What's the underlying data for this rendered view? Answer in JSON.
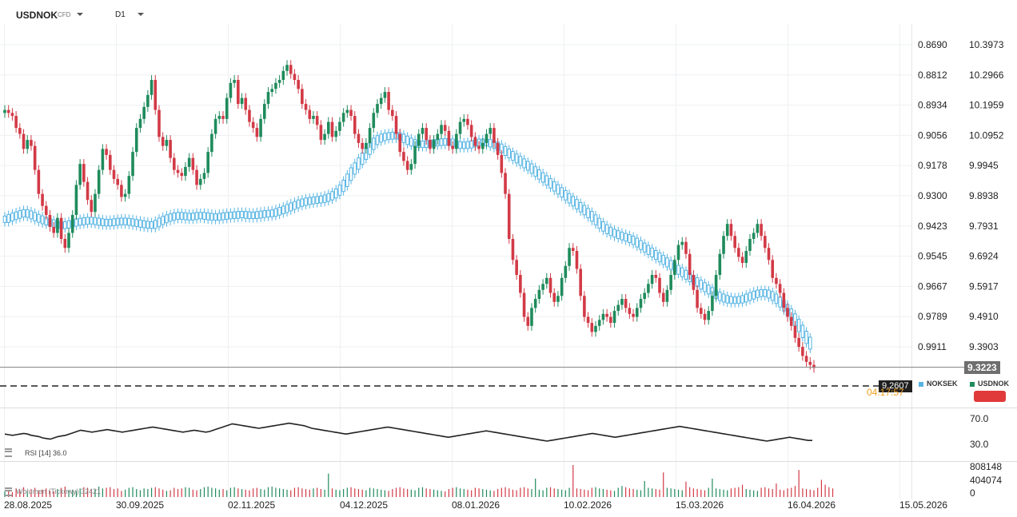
{
  "header": {
    "symbol": "USDNOK",
    "symbol_tag": "CFD",
    "timeframe": "D1"
  },
  "colors": {
    "up": "#1f8b5c",
    "down": "#d23a46",
    "secondary": "#56b4e3",
    "current_price_tag": "#6e6e6e",
    "dashed_tag": "#1f1f1f",
    "countdown": "#f0a020"
  },
  "right_axis_inner": [
    "0.8690",
    "0.8812",
    "0.8934",
    "0.9056",
    "0.9178",
    "0.9300",
    "0.9423",
    "0.9545",
    "0.9667",
    "0.9789",
    "0.9911"
  ],
  "right_axis_outer": [
    "10.3973",
    "10.2966",
    "10.1959",
    "10.0952",
    "9.9945",
    "9.8938",
    "9.7931",
    "9.6924",
    "9.5917",
    "9.4910",
    "9.3903"
  ],
  "current_price": "9.3223",
  "dashed_price": "9.2607",
  "countdown": "04:17:57",
  "legend": {
    "secondary": "NOKSEK",
    "primary": "USDNOK"
  },
  "rsi": {
    "label": "RSI [14] 36.0",
    "levels": [
      "70.0",
      "30.0"
    ]
  },
  "volume": {
    "label": "Wolumen (Tickowy) 32421",
    "levels": [
      "808148",
      "404074",
      "0"
    ]
  },
  "date_axis": [
    "28.08.2025",
    "30.09.2025",
    "02.11.2025",
    "04.12.2025",
    "08.01.2026",
    "10.02.2026",
    "15.03.2026",
    "16.04.2026",
    "15.05.2026"
  ],
  "chart_data": {
    "type": "candlestick",
    "primary_series": {
      "name": "USDNOK",
      "axis": "outer",
      "close": [
        10.18,
        10.17,
        10.16,
        10.12,
        10.1,
        10.05,
        10.08,
        10.06,
        9.98,
        9.9,
        9.86,
        9.83,
        9.79,
        9.77,
        9.82,
        9.75,
        9.72,
        9.77,
        9.83,
        9.93,
        10.0,
        9.94,
        9.88,
        9.84,
        9.9,
        9.98,
        10.05,
        10.03,
        9.98,
        9.95,
        9.93,
        9.89,
        9.9,
        9.96,
        10.04,
        10.12,
        10.15,
        10.19,
        10.23,
        10.28,
        10.18,
        10.09,
        10.06,
        10.08,
        10.02,
        9.98,
        9.97,
        9.96,
        9.99,
        10.02,
        9.98,
        9.93,
        9.95,
        9.97,
        10.04,
        10.1,
        10.15,
        10.16,
        10.15,
        10.22,
        10.27,
        10.28,
        10.2,
        10.22,
        10.18,
        10.14,
        10.12,
        10.09,
        10.15,
        10.2,
        10.24,
        10.25,
        10.27,
        10.28,
        10.31,
        10.33,
        10.3,
        10.28,
        10.25,
        10.2,
        10.18,
        10.15,
        10.16,
        10.13,
        10.08,
        10.1,
        10.14,
        10.09,
        10.11,
        10.14,
        10.17,
        10.18,
        10.16,
        10.1,
        10.07,
        10.05,
        10.07,
        10.12,
        10.17,
        10.2,
        10.22,
        10.24,
        10.18,
        10.16,
        10.1,
        10.04,
        10.01,
        9.98,
        10.0,
        10.06,
        10.1,
        10.12,
        10.08,
        10.05,
        10.08,
        10.1,
        10.13,
        10.11,
        10.06,
        10.05,
        10.1,
        10.14,
        10.15,
        10.13,
        10.09,
        10.06,
        10.05,
        10.07,
        10.1,
        10.12,
        10.07,
        10.03,
        9.97,
        9.9,
        9.75,
        9.68,
        9.63,
        9.57,
        9.49,
        9.46,
        9.52,
        9.55,
        9.58,
        9.6,
        9.62,
        9.57,
        9.54,
        9.56,
        9.62,
        9.66,
        9.72,
        9.71,
        9.65,
        9.56,
        9.49,
        9.47,
        9.44,
        9.46,
        9.48,
        9.5,
        9.49,
        9.47,
        9.51,
        9.53,
        9.55,
        9.52,
        9.5,
        9.49,
        9.52,
        9.55,
        9.57,
        9.6,
        9.63,
        9.62,
        9.57,
        9.54,
        9.58,
        9.63,
        9.68,
        9.73,
        9.74,
        9.7,
        9.63,
        9.58,
        9.52,
        9.5,
        9.48,
        9.51,
        9.56,
        9.63,
        9.7,
        9.76,
        9.8,
        9.76,
        9.72,
        9.69,
        9.67,
        9.71,
        9.75,
        9.77,
        9.8,
        9.76,
        9.72,
        9.68,
        9.62,
        9.6,
        9.57,
        9.52,
        9.49,
        9.46,
        9.42,
        9.39,
        9.36,
        9.34,
        9.33,
        9.32
      ],
      "open": [
        10.17,
        10.18,
        10.17,
        10.16,
        10.12,
        10.1,
        10.05,
        10.08,
        10.06,
        9.98,
        9.9,
        9.86,
        9.83,
        9.79,
        9.77,
        9.82,
        9.75,
        9.72,
        9.77,
        9.83,
        9.93,
        10.0,
        9.94,
        9.88,
        9.84,
        9.9,
        9.98,
        10.05,
        10.03,
        9.98,
        9.95,
        9.93,
        9.89,
        9.9,
        9.96,
        10.04,
        10.12,
        10.15,
        10.19,
        10.23,
        10.28,
        10.18,
        10.09,
        10.06,
        10.08,
        10.02,
        9.98,
        9.97,
        9.96,
        9.99,
        10.02,
        9.98,
        9.93,
        9.95,
        9.97,
        10.04,
        10.1,
        10.15,
        10.16,
        10.15,
        10.22,
        10.27,
        10.28,
        10.2,
        10.22,
        10.18,
        10.14,
        10.12,
        10.09,
        10.15,
        10.2,
        10.24,
        10.25,
        10.27,
        10.28,
        10.31,
        10.33,
        10.3,
        10.28,
        10.25,
        10.2,
        10.18,
        10.15,
        10.16,
        10.13,
        10.08,
        10.1,
        10.14,
        10.09,
        10.11,
        10.14,
        10.17,
        10.18,
        10.16,
        10.1,
        10.07,
        10.05,
        10.07,
        10.12,
        10.17,
        10.2,
        10.22,
        10.24,
        10.18,
        10.16,
        10.1,
        10.04,
        10.01,
        9.98,
        10.0,
        10.06,
        10.1,
        10.12,
        10.08,
        10.05,
        10.08,
        10.1,
        10.13,
        10.11,
        10.06,
        10.05,
        10.1,
        10.14,
        10.15,
        10.13,
        10.09,
        10.06,
        10.05,
        10.07,
        10.1,
        10.12,
        10.07,
        10.03,
        9.97,
        9.9,
        9.75,
        9.68,
        9.63,
        9.57,
        9.49,
        9.46,
        9.52,
        9.55,
        9.58,
        9.6,
        9.62,
        9.57,
        9.54,
        9.56,
        9.62,
        9.66,
        9.72,
        9.71,
        9.65,
        9.56,
        9.49,
        9.47,
        9.44,
        9.46,
        9.48,
        9.5,
        9.49,
        9.47,
        9.51,
        9.53,
        9.55,
        9.52,
        9.5,
        9.49,
        9.52,
        9.55,
        9.57,
        9.6,
        9.63,
        9.62,
        9.57,
        9.54,
        9.58,
        9.63,
        9.68,
        9.73,
        9.74,
        9.7,
        9.63,
        9.58,
        9.52,
        9.5,
        9.48,
        9.51,
        9.56,
        9.63,
        9.7,
        9.76,
        9.8,
        9.76,
        9.72,
        9.69,
        9.67,
        9.71,
        9.75,
        9.77,
        9.8,
        9.76,
        9.72,
        9.68,
        9.62,
        9.6,
        9.57,
        9.52,
        9.49,
        9.46,
        9.42,
        9.39,
        9.36,
        9.34,
        9.33
      ]
    },
    "secondary_series": {
      "name": "NOKSEK",
      "axis": "inner",
      "close": [
        0.9395,
        0.9389,
        0.9383,
        0.9378,
        0.9373,
        0.9369,
        0.9374,
        0.938,
        0.9388,
        0.9394,
        0.94,
        0.9405,
        0.941,
        0.9415,
        0.9418,
        0.942,
        0.9418,
        0.9414,
        0.941,
        0.9406,
        0.9404,
        0.9402,
        0.94,
        0.9401,
        0.9403,
        0.9406,
        0.9408,
        0.9409,
        0.9408,
        0.9406,
        0.9404,
        0.9403,
        0.9404,
        0.9406,
        0.9409,
        0.9411,
        0.9414,
        0.9416,
        0.9418,
        0.9419,
        0.9412,
        0.9403,
        0.9396,
        0.939,
        0.9386,
        0.9382,
        0.938,
        0.9382,
        0.9384,
        0.9385,
        0.9383,
        0.938,
        0.938,
        0.9382,
        0.9384,
        0.9386,
        0.9386,
        0.9384,
        0.9382,
        0.938,
        0.9379,
        0.9378,
        0.9376,
        0.9376,
        0.9378,
        0.9379,
        0.9379,
        0.9377,
        0.9375,
        0.9373,
        0.9372,
        0.937,
        0.9365,
        0.936,
        0.9355,
        0.9348,
        0.9342,
        0.9336,
        0.933,
        0.9326,
        0.9322,
        0.932,
        0.9318,
        0.9316,
        0.9314,
        0.931,
        0.9304,
        0.9296,
        0.9285,
        0.927,
        0.925,
        0.9225,
        0.92,
        0.918,
        0.916,
        0.914,
        0.912,
        0.91,
        0.908,
        0.907,
        0.9064,
        0.906,
        0.9058,
        0.9056,
        0.9058,
        0.9064,
        0.9072,
        0.908,
        0.9086,
        0.909,
        0.9092,
        0.9092,
        0.909,
        0.9088,
        0.9086,
        0.9084,
        0.9083,
        0.9082,
        0.9084,
        0.9088,
        0.9094,
        0.9096,
        0.9096,
        0.9094,
        0.909,
        0.9086,
        0.9084,
        0.9084,
        0.9086,
        0.909,
        0.9096,
        0.9104,
        0.9114,
        0.9124,
        0.9134,
        0.9144,
        0.9154,
        0.9164,
        0.9174,
        0.9184,
        0.9196,
        0.9208,
        0.922,
        0.9232,
        0.9244,
        0.9256,
        0.9268,
        0.928,
        0.9292,
        0.9304,
        0.9316,
        0.9328,
        0.934,
        0.9352,
        0.9364,
        0.9376,
        0.939,
        0.9404,
        0.9418,
        0.943,
        0.944,
        0.9448,
        0.9454,
        0.946,
        0.9465,
        0.947,
        0.9476,
        0.9484,
        0.9494,
        0.9504,
        0.9514,
        0.9524,
        0.9534,
        0.9544,
        0.9554,
        0.9564,
        0.9574,
        0.9584,
        0.9594,
        0.9604,
        0.9614,
        0.9624,
        0.9634,
        0.9644,
        0.9654,
        0.9664,
        0.9674,
        0.9684,
        0.9694,
        0.9702,
        0.971,
        0.9716,
        0.972,
        0.9722,
        0.9722,
        0.972,
        0.9716,
        0.971,
        0.9704,
        0.9698,
        0.9694,
        0.9692,
        0.9694,
        0.97,
        0.971,
        0.9722,
        0.9736,
        0.9752,
        0.977,
        0.979,
        0.9812,
        0.9836,
        0.986,
        0.9884,
        0.9906
      ]
    },
    "rsi": [
      46,
      45,
      44,
      45,
      46,
      47,
      46,
      44,
      43,
      42,
      40,
      39,
      38,
      40,
      42,
      43,
      44,
      46,
      48,
      50,
      52,
      51,
      50,
      49,
      50,
      51,
      52,
      53,
      52,
      51,
      50,
      49,
      50,
      51,
      52,
      53,
      54,
      55,
      56,
      57,
      56,
      55,
      54,
      53,
      52,
      51,
      50,
      49,
      50,
      51,
      52,
      51,
      50,
      49,
      50,
      52,
      54,
      56,
      58,
      60,
      62,
      61,
      60,
      59,
      58,
      57,
      56,
      55,
      56,
      57,
      58,
      59,
      60,
      61,
      62,
      63,
      62,
      61,
      60,
      59,
      57,
      55,
      54,
      53,
      52,
      51,
      50,
      49,
      48,
      47,
      46,
      47,
      48,
      49,
      50,
      51,
      52,
      53,
      54,
      55,
      56,
      57,
      56,
      55,
      54,
      53,
      52,
      51,
      50,
      49,
      48,
      47,
      46,
      45,
      44,
      43,
      42,
      41,
      42,
      43,
      44,
      45,
      46,
      47,
      48,
      49,
      50,
      51,
      50,
      49,
      48,
      47,
      46,
      45,
      44,
      43,
      42,
      41,
      40,
      39,
      38,
      37,
      36,
      35,
      36,
      37,
      38,
      39,
      40,
      41,
      42,
      43,
      44,
      45,
      46,
      47,
      46,
      45,
      44,
      43,
      42,
      41,
      42,
      43,
      44,
      45,
      46,
      47,
      48,
      49,
      50,
      51,
      52,
      53,
      54,
      55,
      56,
      57,
      58,
      57,
      56,
      55,
      54,
      53,
      52,
      51,
      50,
      49,
      48,
      47,
      46,
      45,
      44,
      43,
      42,
      41,
      40,
      39,
      38,
      37,
      36,
      35,
      36,
      37,
      38,
      39,
      40,
      41,
      40,
      39,
      38,
      37,
      36,
      36
    ],
    "volume": [
      90,
      110,
      80,
      140,
      120,
      160,
      100,
      130,
      150,
      110,
      120,
      140,
      100,
      90,
      130,
      150,
      170,
      110,
      120,
      100,
      140,
      160,
      150,
      130,
      120,
      170,
      140,
      150,
      160,
      130,
      140,
      100,
      120,
      150,
      160,
      130,
      110,
      140,
      130,
      150,
      160,
      140,
      120,
      100,
      110,
      150,
      130,
      140,
      160,
      150,
      120,
      110,
      130,
      160,
      170,
      150,
      140,
      120,
      130,
      110,
      150,
      160,
      140,
      130,
      120,
      110,
      140,
      150,
      130,
      120,
      160,
      170,
      150,
      140,
      130,
      120,
      110,
      150,
      160,
      140,
      130,
      120,
      140,
      150,
      130,
      120,
      380,
      140,
      120,
      110,
      130,
      150,
      160,
      140,
      130,
      120,
      110,
      150,
      140,
      130,
      120,
      110,
      100,
      130,
      150,
      160,
      140,
      130,
      120,
      110,
      150,
      160,
      140,
      130,
      120,
      110,
      100,
      90,
      130,
      150,
      160,
      140,
      130,
      120,
      110,
      150,
      140,
      130,
      120,
      110,
      100,
      130,
      150,
      160,
      140,
      120,
      110,
      150,
      160,
      140,
      130,
      300,
      120,
      110,
      150,
      160,
      140,
      130,
      120,
      110,
      150,
      520,
      140,
      130,
      120,
      110,
      150,
      160,
      140,
      130,
      120,
      110,
      100,
      150,
      180,
      160,
      140,
      130,
      120,
      110,
      260,
      150,
      140,
      130,
      120,
      400,
      150,
      140,
      130,
      120,
      110,
      250,
      160,
      140,
      130,
      120,
      110,
      150,
      300,
      140,
      130,
      120,
      110,
      140,
      150,
      160,
      200,
      130,
      120,
      110,
      100,
      150,
      160,
      140,
      130,
      220,
      120,
      110,
      140,
      150,
      180,
      440,
      140,
      130,
      120,
      110,
      150,
      280,
      200,
      160,
      140
    ]
  }
}
